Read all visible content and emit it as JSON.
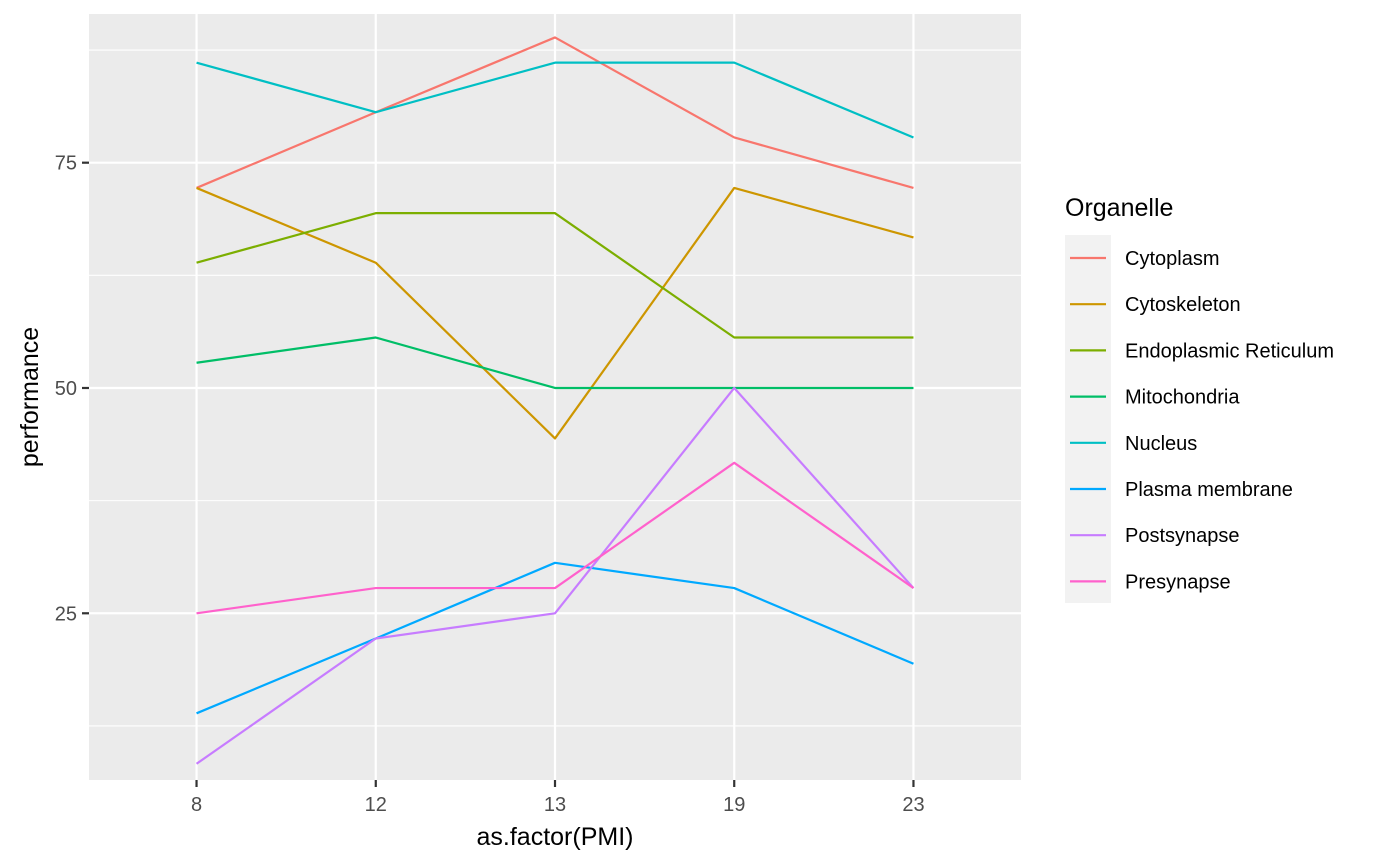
{
  "chart_data": {
    "type": "line",
    "xlabel": "as.factor(PMI)",
    "ylabel": "performance",
    "categories": [
      "8",
      "12",
      "13",
      "19",
      "23"
    ],
    "ylim": [
      6.5,
      91.5
    ],
    "y_ticks": [
      25,
      50,
      75
    ],
    "y_tick_labels": [
      "25",
      "50",
      "75"
    ],
    "grid": true,
    "legend_title": "Organelle",
    "legend_position": "right",
    "series": [
      {
        "name": "Cytoplasm",
        "color": "#F8766D",
        "values": [
          72.2,
          80.6,
          88.9,
          77.8,
          72.2
        ]
      },
      {
        "name": "Cytoskeleton",
        "color": "#CD9600",
        "values": [
          72.2,
          63.9,
          44.4,
          72.2,
          66.7
        ]
      },
      {
        "name": "Endoplasmic Reticulum",
        "color": "#7CAE00",
        "values": [
          63.9,
          69.4,
          69.4,
          55.6,
          55.6
        ]
      },
      {
        "name": "Mitochondria",
        "color": "#00BE67",
        "values": [
          52.8,
          55.6,
          50.0,
          50.0,
          50.0
        ]
      },
      {
        "name": "Nucleus",
        "color": "#00BFC4",
        "values": [
          86.1,
          80.6,
          86.1,
          86.1,
          77.8
        ]
      },
      {
        "name": "Plasma membrane",
        "color": "#00A9FF",
        "values": [
          13.9,
          22.2,
          30.6,
          27.8,
          19.4
        ]
      },
      {
        "name": "Postsynapse",
        "color": "#C77CFF",
        "values": [
          8.3,
          22.2,
          25.0,
          50.0,
          27.8
        ]
      },
      {
        "name": "Presynapse",
        "color": "#FF61CC",
        "values": [
          25.0,
          27.8,
          27.8,
          41.7,
          27.8
        ]
      }
    ]
  }
}
